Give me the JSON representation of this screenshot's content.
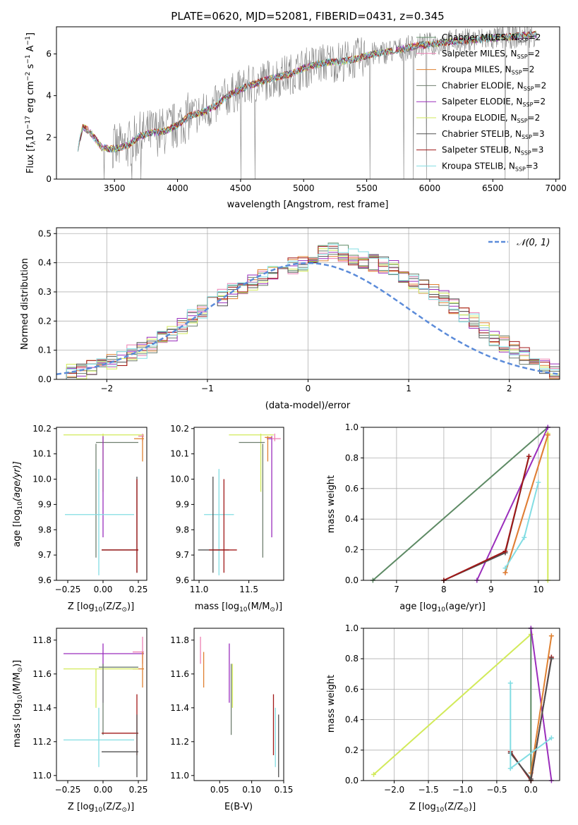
{
  "colors": {
    "observed": "#808080",
    "gauss": "#5b8bd9",
    "Chabrier MILES": "#5d8a64",
    "Salpeter MILES": "#ec7fb2",
    "Kroupa MILES": "#df8131",
    "Chabrier ELODIE": "#6f7f6f",
    "Salpeter ELODIE": "#9a2ebc",
    "Kroupa ELODIE": "#d2ea5a",
    "Chabrier STELIB": "#505050",
    "Salpeter STELIB": "#a11818",
    "Kroupa STELIB": "#82dde3"
  },
  "chart_data": [
    {
      "type": "line",
      "title": "PLATE=0620, MJD=52081, FIBERID=0431, z=0.345",
      "xlabel": "wavelength [Angstrom, rest frame]",
      "ylabel": "Flux [f",
      "ylabel_sub": "λ",
      "ylabel_mid": "10",
      "ylabel_sup": "−17",
      "ylabel_rest1": " erg cm",
      "ylabel_sup2": "−2",
      "ylabel_rest2": " s",
      "ylabel_sup3": "−1",
      "ylabel_rest3": " A",
      "ylabel_sup4": "−1",
      "ylabel_end": "]",
      "xlim": [
        3040,
        7030
      ],
      "ylim": [
        0,
        7.3
      ],
      "xticks": [
        3500,
        4000,
        4500,
        5000,
        5500,
        6000,
        6500,
        7000
      ],
      "yticks": [
        0,
        2,
        4,
        6
      ],
      "legend": "upper right",
      "legend_entries": [
        {
          "label": "Chabrier MILES, N",
          "sub": "SSP",
          "tail": "=2"
        },
        {
          "label": "Salpeter MILES, N",
          "sub": "SSP",
          "tail": "=2"
        },
        {
          "label": "Kroupa MILES, N",
          "sub": "SSP",
          "tail": "=2"
        },
        {
          "label": "Chabrier ELODIE, N",
          "sub": "SSP",
          "tail": "=2"
        },
        {
          "label": "Salpeter ELODIE, N",
          "sub": "SSP",
          "tail": "=2"
        },
        {
          "label": "Kroupa ELODIE, N",
          "sub": "SSP",
          "tail": "=2"
        },
        {
          "label": "Chabrier STELIB, N",
          "sub": "SSP",
          "tail": "=3"
        },
        {
          "label": "Salpeter STELIB, N",
          "sub": "SSP",
          "tail": "=3"
        },
        {
          "label": "Kroupa STELIB, N",
          "sub": "SSP",
          "tail": "=3"
        }
      ],
      "continuum": [
        [
          3210,
          1.5
        ],
        [
          3250,
          2.5
        ],
        [
          3300,
          2.3
        ],
        [
          3400,
          1.5
        ],
        [
          3500,
          1.45
        ],
        [
          3600,
          1.6
        ],
        [
          3700,
          2.05
        ],
        [
          3800,
          2.25
        ],
        [
          3900,
          2.3
        ],
        [
          4000,
          2.6
        ],
        [
          4100,
          3.05
        ],
        [
          4200,
          3.2
        ],
        [
          4300,
          3.5
        ],
        [
          4400,
          4.0
        ],
        [
          4500,
          4.3
        ],
        [
          4600,
          4.55
        ],
        [
          4700,
          4.75
        ],
        [
          4800,
          4.9
        ],
        [
          4900,
          5.05
        ],
        [
          5000,
          5.3
        ],
        [
          5100,
          5.5
        ],
        [
          5200,
          5.6
        ],
        [
          5300,
          5.65
        ],
        [
          5400,
          5.75
        ],
        [
          5500,
          5.9
        ],
        [
          5600,
          6.05
        ],
        [
          5700,
          6.15
        ],
        [
          5800,
          6.25
        ],
        [
          5900,
          6.4
        ],
        [
          6000,
          6.45
        ],
        [
          6100,
          6.55
        ],
        [
          6200,
          6.6
        ],
        [
          6300,
          6.65
        ],
        [
          6400,
          6.7
        ],
        [
          6500,
          6.75
        ],
        [
          6600,
          6.8
        ],
        [
          6700,
          6.85
        ],
        [
          6800,
          6.9
        ],
        [
          6850,
          6.95
        ]
      ]
    },
    {
      "type": "bar",
      "xlabel": "(data-model)/error",
      "ylabel": "Normed distribution",
      "xlim": [
        -2.5,
        2.5
      ],
      "ylim": [
        0,
        0.52
      ],
      "xticks": [
        -2,
        -1,
        0,
        1,
        2
      ],
      "yticks": [
        0.0,
        0.1,
        0.2,
        0.3,
        0.4,
        0.5
      ],
      "grid": true,
      "legend": "upper right",
      "gauss_label": "𝒩(0, 1)",
      "bin_width": 0.1,
      "base_hist": [
        0.02,
        0.025,
        0.03,
        0.04,
        0.05,
        0.06,
        0.07,
        0.09,
        0.1,
        0.12,
        0.14,
        0.16,
        0.18,
        0.21,
        0.24,
        0.26,
        0.28,
        0.3,
        0.31,
        0.33,
        0.35,
        0.37,
        0.38,
        0.39,
        0.4,
        0.42,
        0.43,
        0.44,
        0.43,
        0.42,
        0.41,
        0.4,
        0.39,
        0.38,
        0.36,
        0.34,
        0.32,
        0.3,
        0.28,
        0.25,
        0.22,
        0.2,
        0.17,
        0.14,
        0.12,
        0.1,
        0.08,
        0.06,
        0.04,
        0.03
      ]
    },
    {
      "type": "scatter",
      "xlabel": "Z [log",
      "xlabel_sub": "10",
      "xlabel_mid": "(Z/Z",
      "xlabel_sub2": "⊙",
      "xlabel_end": ")]",
      "ylabel": "age  [log",
      "ylabel_sub": "10",
      "ylabel_end": "(age/yr)]",
      "xlim": [
        -0.33,
        0.31
      ],
      "ylim": [
        9.6,
        10.205
      ],
      "xticks": [
        -0.25,
        0.0,
        0.25
      ],
      "yticks": [
        9.6,
        9.7,
        9.8,
        9.9,
        10.0,
        10.1,
        10.2
      ]
    },
    {
      "type": "scatter",
      "xlabel": "mass [log",
      "xlabel_sub": "10",
      "xlabel_mid": "(M/M",
      "xlabel_sub2": "⊙",
      "xlabel_end": ")]",
      "xlim": [
        10.95,
        11.85
      ],
      "ylim": [
        9.6,
        10.205
      ],
      "xticks": [
        11.0,
        11.5
      ],
      "yticks": [
        9.6,
        9.7,
        9.8,
        9.9,
        10.0,
        10.1,
        10.2
      ]
    },
    {
      "type": "line",
      "xlabel": "age  [log",
      "xlabel_sub": "10",
      "xlabel_end": "(age/yr)]",
      "ylabel": "mass weight",
      "xlim": [
        6.3,
        10.45
      ],
      "ylim": [
        0,
        1.0
      ],
      "xticks": [
        7,
        8,
        9,
        10
      ],
      "yticks": [
        0.0,
        0.2,
        0.4,
        0.6,
        0.8,
        1.0
      ],
      "grid": true,
      "series": [
        {
          "key": "Chabrier MILES",
          "x": [
            6.5,
            10.2
          ],
          "y": [
            0.0,
            1.0
          ]
        },
        {
          "key": "Salpeter ELODIE",
          "x": [
            8.7,
            10.2
          ],
          "y": [
            0.0,
            1.0
          ]
        },
        {
          "key": "Kroupa ELODIE",
          "x": [
            10.2,
            10.2
          ],
          "y": [
            0.0,
            0.96
          ]
        },
        {
          "key": "Salpeter MILES",
          "x": [
            9.3,
            10.2
          ],
          "y": [
            0.05,
            0.95
          ]
        },
        {
          "key": "Kroupa MILES",
          "x": [
            9.3,
            10.2
          ],
          "y": [
            0.05,
            0.95
          ]
        },
        {
          "key": "Kroupa STELIB",
          "x": [
            9.3,
            9.7,
            10.0
          ],
          "y": [
            0.08,
            0.28,
            0.64
          ]
        },
        {
          "key": "Chabrier STELIB",
          "x": [
            8.0,
            9.3,
            9.8
          ],
          "y": [
            0.0,
            0.18,
            0.81
          ]
        },
        {
          "key": "Salpeter STELIB",
          "x": [
            8.0,
            9.3,
            9.8
          ],
          "y": [
            0.0,
            0.19,
            0.81
          ]
        }
      ]
    },
    {
      "type": "scatter",
      "xlabel": "Z [log",
      "xlabel_sub": "10",
      "xlabel_mid": "(Z/Z",
      "xlabel_sub2": "⊙",
      "xlabel_end": ")]",
      "ylabel": "mass [log",
      "ylabel_sub": "10",
      "ylabel_mid": "(M/M",
      "ylabel_sub2": "⊙",
      "ylabel_end": ")]",
      "xlim": [
        -0.33,
        0.31
      ],
      "ylim": [
        10.97,
        11.87
      ],
      "xticks": [
        -0.25,
        0.0,
        0.25
      ],
      "yticks": [
        11.0,
        11.2,
        11.4,
        11.6,
        11.8
      ]
    },
    {
      "type": "scatter",
      "xlabel": "E(B-V)",
      "xlim": [
        0.01,
        0.15
      ],
      "ylim": [
        10.97,
        11.87
      ],
      "xticks": [
        0.05,
        0.1,
        0.15
      ],
      "yticks": [
        11.0,
        11.2,
        11.4,
        11.6,
        11.8
      ]
    },
    {
      "type": "line",
      "xlabel": "Z [log",
      "xlabel_sub": "10",
      "xlabel_mid": "(Z/Z",
      "xlabel_sub2": "⊙",
      "xlabel_end": ")]",
      "ylabel": "mass weight",
      "xlim": [
        -2.45,
        0.42
      ],
      "ylim": [
        0,
        1.0
      ],
      "xticks": [
        -2.0,
        -1.5,
        -1.0,
        -0.5,
        0.0
      ],
      "yticks": [
        0.0,
        0.2,
        0.4,
        0.6,
        0.8,
        1.0
      ],
      "grid": true,
      "series": [
        {
          "key": "Kroupa ELODIE",
          "x": [
            -2.3,
            0.0
          ],
          "y": [
            0.04,
            0.96
          ]
        },
        {
          "key": "Chabrier MILES",
          "x": [
            0.0,
            0.0
          ],
          "y": [
            0.0,
            1.0
          ]
        },
        {
          "key": "Salpeter ELODIE",
          "x": [
            0.0,
            0.3
          ],
          "y": [
            1.0,
            0.0
          ]
        },
        {
          "key": "Kroupa MILES",
          "x": [
            0.0,
            0.3
          ],
          "y": [
            0.05,
            0.95
          ]
        },
        {
          "key": "Salpeter STELIB",
          "x": [
            -0.3,
            0.0,
            0.3
          ],
          "y": [
            0.19,
            0.0,
            0.81
          ]
        },
        {
          "key": "Chabrier STELIB",
          "x": [
            -0.3,
            0.0,
            0.3
          ],
          "y": [
            0.18,
            0.01,
            0.8
          ]
        },
        {
          "key": "Kroupa STELIB",
          "x": [
            -0.3,
            -0.3,
            0.3
          ],
          "y": [
            0.64,
            0.08,
            0.28
          ]
        }
      ]
    }
  ]
}
